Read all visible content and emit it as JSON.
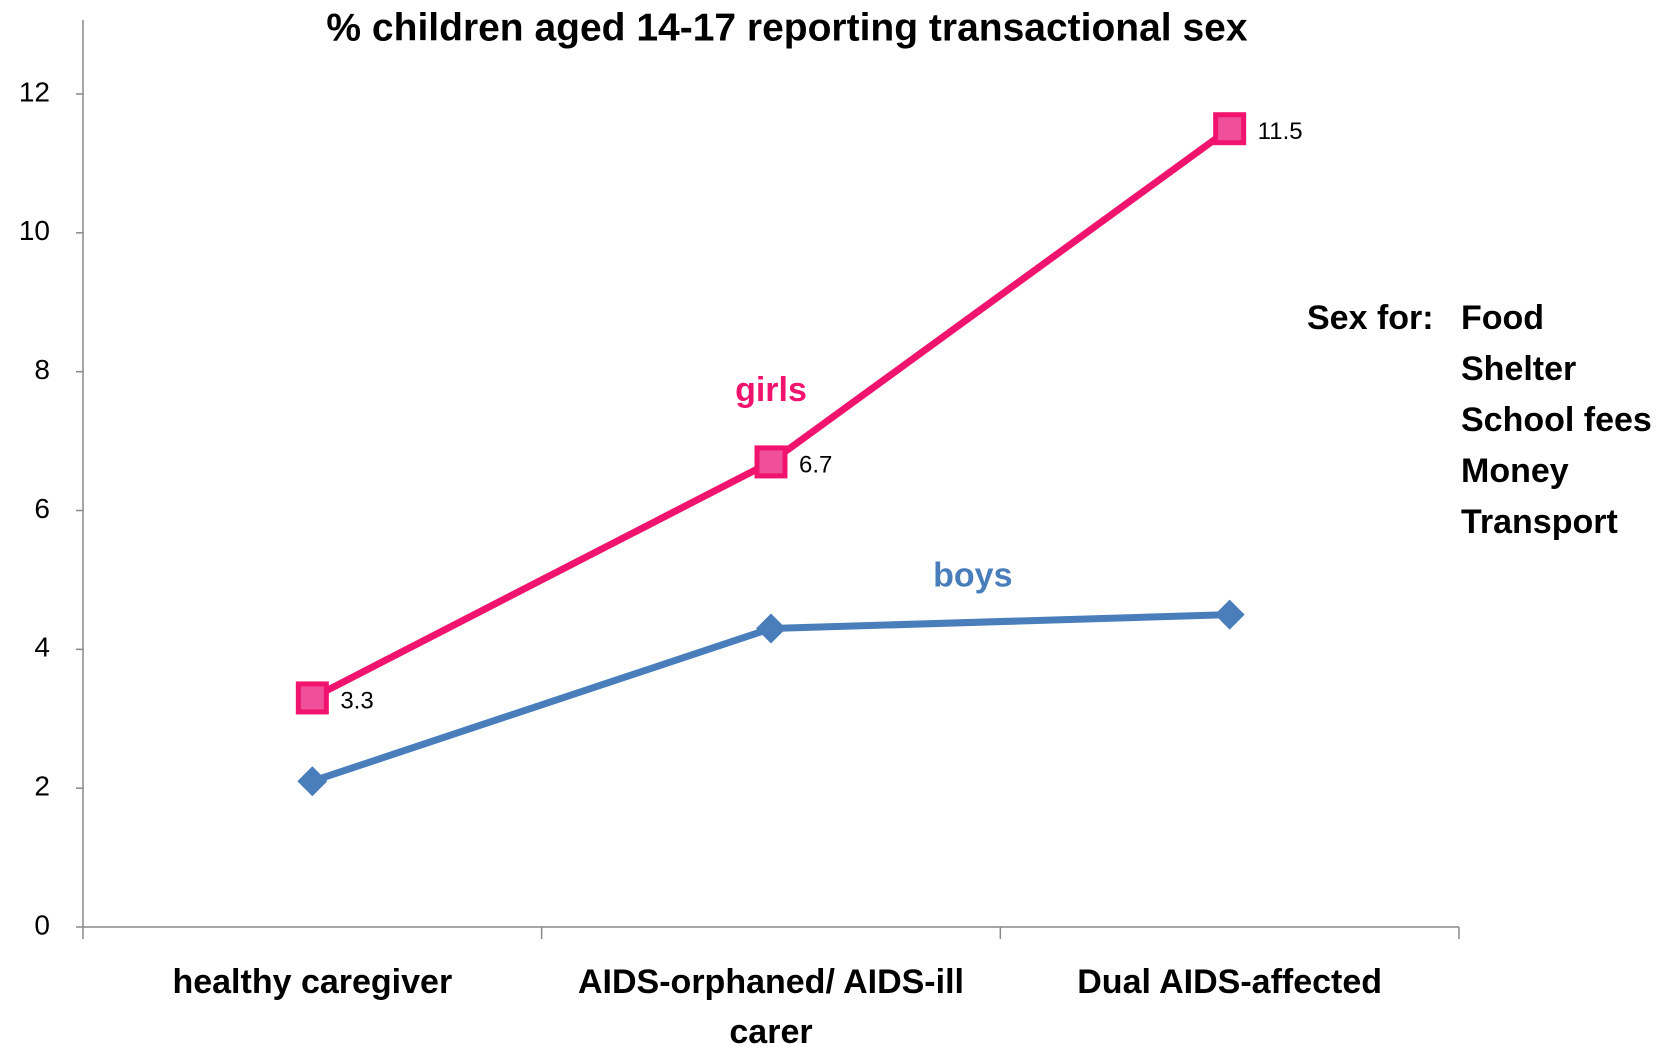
{
  "chart_data": {
    "type": "line",
    "title": "% children aged 14-17 reporting transactional sex",
    "categories": [
      "healthy caregiver",
      "AIDS-orphaned/ AIDS-ill carer",
      "Dual AIDS-affected"
    ],
    "series": [
      {
        "name": "girls",
        "color": "#f0146e",
        "marker": "square",
        "data_labels": true,
        "values": [
          3.3,
          6.7,
          11.5
        ]
      },
      {
        "name": "boys",
        "color": "#4a7ebb",
        "marker": "diamond",
        "data_labels": false,
        "values": [
          2.1,
          4.3,
          4.5
        ]
      }
    ],
    "ylim": [
      0,
      12
    ],
    "yticks": [
      0,
      2,
      4,
      6,
      8,
      10,
      12
    ],
    "grid": false,
    "annotation": {
      "label": "Sex for:",
      "items": [
        "Food",
        "Shelter",
        "School fees",
        "Money",
        "Transport"
      ]
    }
  }
}
